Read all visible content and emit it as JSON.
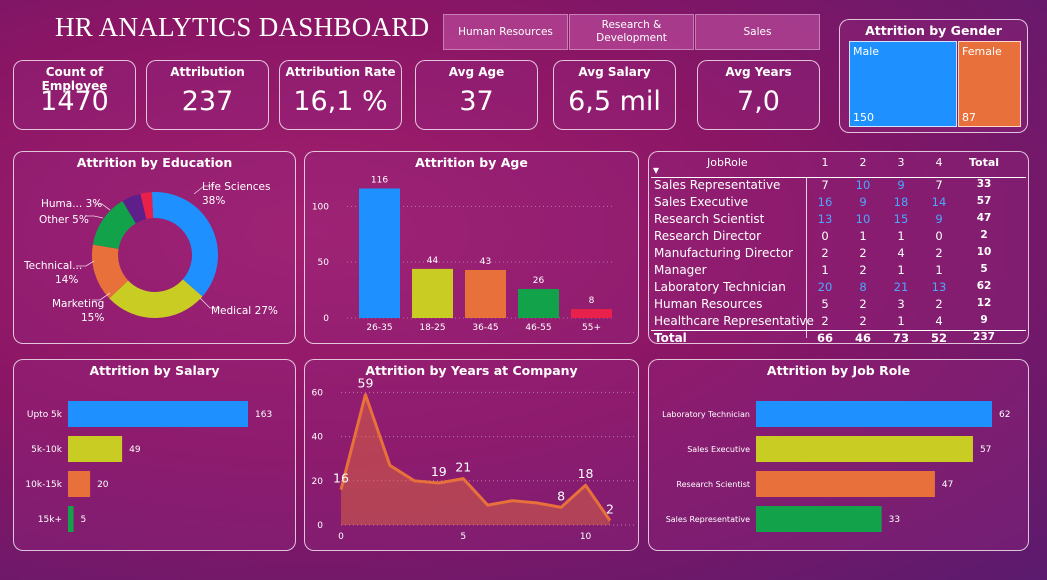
{
  "header": {
    "title": "HR ANALYTICS DASHBOARD",
    "departments": [
      "Human Resources",
      "Research & Development",
      "Sales"
    ]
  },
  "kpis": [
    {
      "label": "Count of Employee",
      "value": "1470"
    },
    {
      "label": "Attribution",
      "value": "237"
    },
    {
      "label": "Attribution Rate",
      "value": "16,1 %"
    },
    {
      "label": "Avg Age",
      "value": "37"
    },
    {
      "label": "Avg Salary",
      "value": "6,5 mil"
    },
    {
      "label": "Avg Years",
      "value": "7,0"
    }
  ],
  "gender": {
    "title": "Attrition by Gender",
    "male": {
      "label": "Male",
      "value": "150",
      "color": "#1e90ff"
    },
    "female": {
      "label": "Female",
      "value": "87",
      "color": "#e8703a"
    }
  },
  "education": {
    "title": "Attrition by Education",
    "labels": [
      "Life Sciences",
      "38%",
      "Medical 27%",
      "Marketing",
      "15%",
      "Technical...",
      "14%",
      "Other 5%",
      "Huma... 3%"
    ]
  },
  "age": {
    "title": "Attrition by Age"
  },
  "jobtable": {
    "header": {
      "role": "JobRole",
      "c1": "1",
      "c2": "2",
      "c3": "3",
      "c4": "4",
      "total": "Total"
    },
    "rows": [
      {
        "role": "Sales Representative",
        "v": [
          "7",
          "10",
          "9",
          "7"
        ],
        "total": "33"
      },
      {
        "role": "Sales Executive",
        "v": [
          "16",
          "9",
          "18",
          "14"
        ],
        "total": "57"
      },
      {
        "role": "Research Scientist",
        "v": [
          "13",
          "10",
          "15",
          "9"
        ],
        "total": "47"
      },
      {
        "role": "Research Director",
        "v": [
          "0",
          "1",
          "1",
          "0"
        ],
        "total": "2"
      },
      {
        "role": "Manufacturing Director",
        "v": [
          "2",
          "2",
          "4",
          "2"
        ],
        "total": "10"
      },
      {
        "role": "Manager",
        "v": [
          "1",
          "2",
          "1",
          "1"
        ],
        "total": "5"
      },
      {
        "role": "Laboratory Technician",
        "v": [
          "20",
          "8",
          "21",
          "13"
        ],
        "total": "62"
      },
      {
        "role": "Human Resources",
        "v": [
          "5",
          "2",
          "3",
          "2"
        ],
        "total": "12"
      },
      {
        "role": "Healthcare Representative",
        "v": [
          "2",
          "2",
          "1",
          "4"
        ],
        "total": "9"
      }
    ],
    "totals": {
      "role": "Total",
      "v": [
        "66",
        "46",
        "73",
        "52"
      ],
      "total": "237"
    }
  },
  "salary": {
    "title": "Attrition by Salary"
  },
  "years": {
    "title": "Attrition by Years at Company"
  },
  "jobrole": {
    "title": "Attrition by Job Role"
  },
  "chart_data": [
    {
      "type": "pie",
      "title": "Attrition by Education",
      "categories": [
        "Life Sciences",
        "Medical",
        "Marketing",
        "Technical Degree",
        "Other",
        "Human Resources"
      ],
      "values": [
        38,
        27,
        15,
        14,
        5,
        3
      ],
      "colors": [
        "#1e90ff",
        "#c9cc23",
        "#e8703a",
        "#12a24a",
        "#5e1f8a",
        "#e8204a"
      ]
    },
    {
      "type": "bar",
      "title": "Attrition by Age",
      "categories": [
        "26-35",
        "18-25",
        "36-45",
        "46-55",
        "55+"
      ],
      "values": [
        116,
        44,
        43,
        26,
        8
      ],
      "ylim": [
        0,
        120
      ],
      "yticks": [
        "0",
        "50",
        "100"
      ],
      "colors": [
        "#1e90ff",
        "#c9cc23",
        "#e8703a",
        "#12a24a",
        "#e8204a"
      ]
    },
    {
      "type": "bar",
      "orientation": "horizontal",
      "title": "Attrition by Salary",
      "categories": [
        "Upto 5k",
        "5k-10k",
        "10k-15k",
        "15k+"
      ],
      "values": [
        163,
        49,
        20,
        5
      ],
      "colors": [
        "#1e90ff",
        "#c9cc23",
        "#e8703a",
        "#12a24a"
      ]
    },
    {
      "type": "area",
      "title": "Attrition by Years at Company",
      "x": [
        0,
        1,
        2,
        3,
        4,
        5,
        6,
        7,
        8,
        9,
        10,
        11
      ],
      "values": [
        16,
        59,
        27,
        20,
        19,
        21,
        9,
        11,
        10,
        8,
        18,
        2
      ],
      "labeled_points": [
        {
          "x": 0,
          "label": "16"
        },
        {
          "x": 1,
          "label": "59"
        },
        {
          "x": 4,
          "label": "19"
        },
        {
          "x": 5,
          "label": "21"
        },
        {
          "x": 9,
          "label": "8"
        },
        {
          "x": 10,
          "label": "18"
        },
        {
          "x": 11,
          "label": "2"
        }
      ],
      "ylim": [
        0,
        62
      ],
      "yticks": [
        "0",
        "20",
        "40",
        "60"
      ],
      "xticks": [
        "0",
        "5",
        "10"
      ],
      "color": "#e8703a"
    },
    {
      "type": "bar",
      "orientation": "horizontal",
      "title": "Attrition by Job Role",
      "categories": [
        "Laboratory Technician",
        "Sales Executive",
        "Research Scientist",
        "Sales Representative"
      ],
      "values": [
        62,
        57,
        47,
        33
      ],
      "colors": [
        "#1e90ff",
        "#c9cc23",
        "#e8703a",
        "#12a24a"
      ]
    }
  ]
}
